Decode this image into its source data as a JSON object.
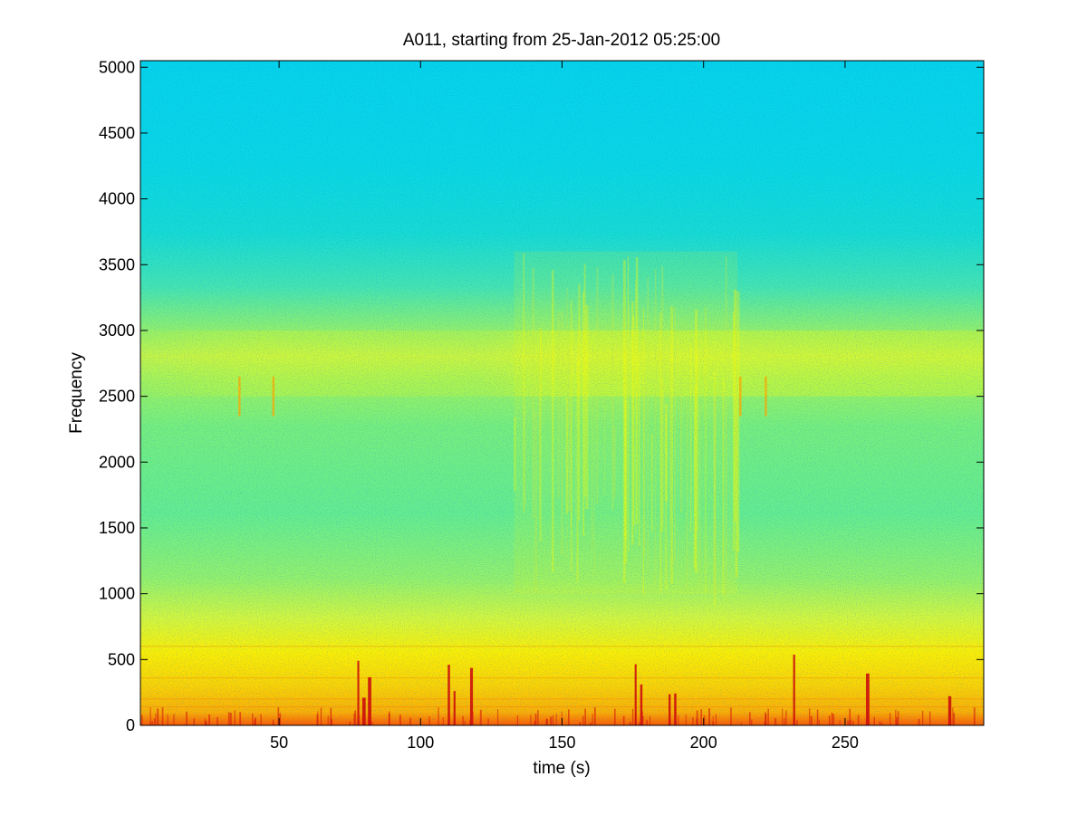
{
  "chart_data": {
    "type": "heatmap",
    "title": "A011, starting from 25-Jan-2012 05:25:00",
    "xlabel": "time (s)",
    "ylabel": "Frequency",
    "xlim": [
      1,
      299
    ],
    "ylim": [
      0,
      5050
    ],
    "x_ticks": [
      50,
      100,
      150,
      200,
      250
    ],
    "y_ticks": [
      0,
      500,
      1000,
      1500,
      2000,
      2500,
      3000,
      3500,
      4000,
      4500,
      5000
    ],
    "grid": false,
    "colormap": "jet",
    "background_band_colors": {
      "low": "#ff3a00",
      "mid_low": "#ffe600",
      "mid": "#7ff07a",
      "high": "#00e0e8"
    },
    "features": {
      "band_2800": {
        "y_range": [
          2500,
          3000
        ]
      },
      "active_segments_x": [
        [
          133,
          212
        ]
      ],
      "transient_spikes_x": [
        78,
        80,
        82,
        110,
        112,
        118,
        176,
        178,
        188,
        190,
        232,
        258,
        287
      ],
      "short_marks_2500": [
        36,
        48,
        213,
        222
      ]
    }
  }
}
